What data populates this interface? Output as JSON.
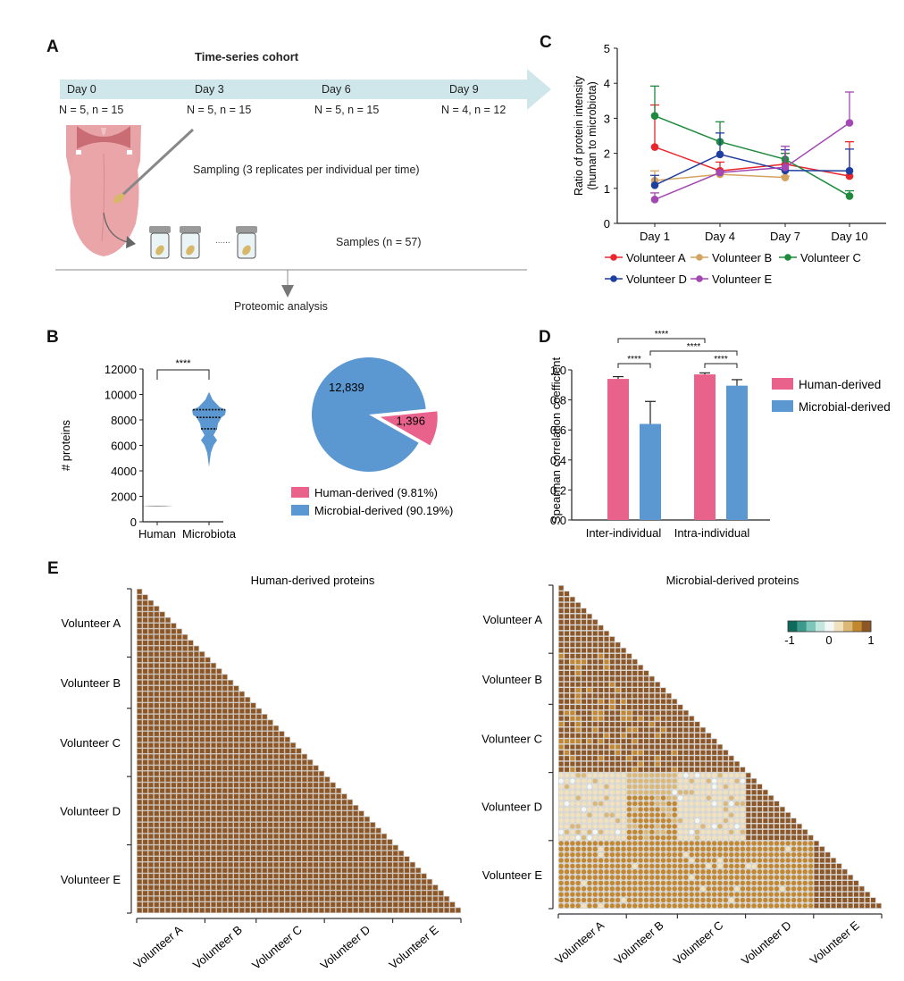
{
  "panels": {
    "A": {
      "letter": "A",
      "title": "Time-series cohort",
      "timepoints": [
        {
          "day": "Day 0",
          "counts": "N = 5, n = 15"
        },
        {
          "day": "Day 3",
          "counts": "N = 5, n = 15"
        },
        {
          "day": "Day 6",
          "counts": "N = 5, n = 15"
        },
        {
          "day": "Day 9",
          "counts": "N = 4, n = 12"
        }
      ],
      "sampling_label": "Sampling (3 replicates per individual per time)",
      "samples_label": "Samples (n = 57)",
      "ellipsis": "......",
      "analysis_label": "Proteomic analysis",
      "colors": {
        "arrow": "#cfe6ea",
        "tongue": "#e9a1a3",
        "mouth": "#d98585"
      }
    },
    "B": {
      "letter": "B"
    },
    "C": {
      "letter": "C"
    },
    "D": {
      "letter": "D"
    },
    "E": {
      "letter": "E"
    }
  },
  "chart_data": [
    {
      "id": "B-violin",
      "type": "violin",
      "ylabel": "# proteins",
      "ylim": [
        0,
        12000
      ],
      "yticks": [
        0,
        2000,
        4000,
        6000,
        8000,
        10000,
        12000
      ],
      "categories": [
        "Human",
        "Microbiota"
      ],
      "distributions": [
        {
          "name": "Human",
          "min": 1180,
          "max": 1260,
          "median": 1220,
          "q1": 1200,
          "q3": 1240,
          "color": "#222222"
        },
        {
          "name": "Microbiota",
          "min": 4300,
          "max": 10200,
          "median": 8200,
          "q1": 7300,
          "q3": 8800,
          "color": "#5b97d1"
        }
      ],
      "significance": [
        {
          "from": "Human",
          "to": "Microbiota",
          "label": "****"
        }
      ]
    },
    {
      "id": "B-pie",
      "type": "pie",
      "slices": [
        {
          "name": "Human-derived",
          "value": 1396,
          "label": "1,396",
          "percent_label": "Human-derived (9.81%)",
          "color": "#e8628c",
          "exploded": true
        },
        {
          "name": "Microbial-derived",
          "value": 12839,
          "label": "12,839",
          "percent_label": "Microbial-derived (90.19%)",
          "color": "#5b97d1",
          "exploded": false
        }
      ],
      "legend": "bottom"
    },
    {
      "id": "C-line",
      "type": "line",
      "ylabel": "Ratio of protein intensity",
      "ylabel2": "(human to microbiota)",
      "ylim": [
        0,
        5
      ],
      "yticks": [
        0,
        1,
        2,
        3,
        4,
        5
      ],
      "x": [
        "Day 1",
        "Day 4",
        "Day 7",
        "Day 10"
      ],
      "series": [
        {
          "name": "Volunteer A",
          "color": "#e8262b",
          "values": [
            2.18,
            1.5,
            1.69,
            1.35
          ],
          "err_upper": [
            3.38,
            1.75,
            2.0,
            2.33
          ]
        },
        {
          "name": "Volunteer B",
          "color": "#d4a360",
          "values": [
            1.22,
            1.4,
            1.31,
            null
          ],
          "err_upper": [
            1.5,
            1.45,
            1.35,
            null
          ]
        },
        {
          "name": "Volunteer C",
          "color": "#1d8a3c",
          "values": [
            3.07,
            2.33,
            1.83,
            0.78
          ],
          "err_upper": [
            3.92,
            2.9,
            2.0,
            0.93
          ]
        },
        {
          "name": "Volunteer D",
          "color": "#1f3fa0",
          "values": [
            1.09,
            1.97,
            1.51,
            1.5
          ],
          "err_upper": [
            1.37,
            2.58,
            2.1,
            2.12
          ]
        },
        {
          "name": "Volunteer E",
          "color": "#a347b3",
          "values": [
            0.68,
            1.45,
            1.6,
            2.87
          ],
          "err_upper": [
            0.87,
            1.5,
            2.2,
            3.75
          ]
        }
      ],
      "legend": "bottom"
    },
    {
      "id": "D-bar",
      "type": "bar",
      "ylabel": "Spearman correlation coefficient",
      "ylim": [
        0,
        1.0
      ],
      "yticks": [
        "0.0",
        "0.2",
        "0.4",
        "0.6",
        "0.8",
        "1.0"
      ],
      "categories": [
        "Inter-individual",
        "Intra-individual"
      ],
      "series": [
        {
          "name": "Human-derived",
          "color": "#e8628c",
          "values": [
            0.94,
            0.97
          ],
          "err_upper": [
            0.955,
            0.98
          ]
        },
        {
          "name": "Microbial-derived",
          "color": "#5b97d1",
          "values": [
            0.64,
            0.895
          ],
          "err_upper": [
            0.79,
            0.935
          ]
        }
      ],
      "significance": [
        {
          "label": "****",
          "pair": "inter-human vs inter-microbial"
        },
        {
          "label": "****",
          "pair": "inter-human vs intra-human"
        },
        {
          "label": "****",
          "pair": "inter-microbial vs intra-microbial"
        },
        {
          "label": "****",
          "pair": "intra-human vs intra-microbial"
        }
      ],
      "legend": "right"
    },
    {
      "id": "E-heatmap-human",
      "type": "heatmap",
      "title": "Human-derived proteins",
      "groups": [
        "Volunteer A",
        "Volunteer B",
        "Volunteer C",
        "Volunteer D",
        "Volunteer E"
      ],
      "group_sizes": [
        12,
        9,
        12,
        12,
        12
      ],
      "layout": "lower-triangle",
      "block_values": [
        [
          0.98
        ],
        [
          0.97,
          0.98
        ],
        [
          0.97,
          0.97,
          0.98
        ],
        [
          0.97,
          0.97,
          0.97,
          0.98
        ],
        [
          0.97,
          0.97,
          0.97,
          0.97,
          0.98
        ]
      ]
    },
    {
      "id": "E-heatmap-microbial",
      "type": "heatmap",
      "title": "Microbial-derived proteins",
      "groups": [
        "Volunteer A",
        "Volunteer B",
        "Volunteer C",
        "Volunteer D",
        "Volunteer E"
      ],
      "group_sizes": [
        12,
        9,
        12,
        12,
        12
      ],
      "layout": "lower-triangle",
      "block_values": [
        [
          0.92
        ],
        [
          0.88,
          0.92
        ],
        [
          0.88,
          0.88,
          0.92
        ],
        [
          0.25,
          0.35,
          0.2,
          0.92
        ],
        [
          0.55,
          0.55,
          0.55,
          0.6,
          0.92
        ]
      ],
      "colorbar": {
        "min": -1,
        "max": 1,
        "ticks": [
          "-1",
          "0",
          "1"
        ],
        "colors": [
          "#0f6a5c",
          "#3c9a8c",
          "#7cc7ba",
          "#c3e6df",
          "#f2f8f6",
          "#f1e2bd",
          "#dcb877",
          "#c2872f",
          "#8d5626"
        ]
      }
    }
  ]
}
